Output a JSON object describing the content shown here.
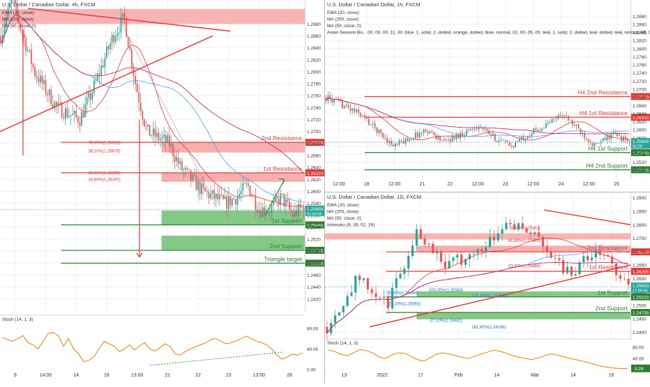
{
  "colors": {
    "up": "#26a69a",
    "down": "#ef5350",
    "grid": "#eef1f5",
    "resistance_fill": "#f59a9a",
    "resistance_line": "#e53935",
    "support_fill": "#66bb6a",
    "support_line": "#2e7d32",
    "ema": "#e53935",
    "ma200": "#c2185b",
    "ma50": "#42a5f5",
    "stoch": "#f57c00",
    "axis_text": "#333333",
    "divider": "#b0b6c2"
  },
  "chart_data": [
    {
      "id": "p4h",
      "type": "candlestick",
      "title": "U.S. Dollar / Canadian Dollar, 4h, FXCM",
      "indicator_labels": [
        "EMA (20, close)",
        "MA (200, close)",
        "MA (50, close, 0)"
      ],
      "ylim": [
        1.24,
        1.292
      ],
      "y_ticks": [
        1.288,
        1.286,
        1.284,
        1.282,
        1.28,
        1.278,
        1.276,
        1.274,
        1.272,
        1.27,
        1.268,
        1.266,
        1.264,
        1.262,
        1.26,
        1.258,
        1.256,
        1.254,
        1.252,
        1.25,
        1.248,
        1.246,
        1.244,
        1.242
      ],
      "x_ticks": [
        "9",
        "14:00",
        "14",
        "16",
        "13:00",
        "21",
        "22",
        "23",
        "13:00",
        "28"
      ],
      "start": 1.286,
      "path": [
        1.286,
        1.292,
        1.286,
        1.28,
        1.277,
        1.274,
        1.273,
        1.272,
        1.276,
        1.281,
        1.286,
        1.289,
        1.278,
        1.27,
        1.269,
        1.268,
        1.264,
        1.262,
        1.26,
        1.259,
        1.258,
        1.259,
        1.261,
        1.257,
        1.257,
        1.259,
        1.256,
        1.2575
      ],
      "levels": [
        {
          "label": "2nd Resistance",
          "price_label": "1.26820",
          "price": 1.2682,
          "kind": "resistance",
          "zone": [
            1.2665,
            1.2682
          ]
        },
        {
          "label": "1st Resistance",
          "price_label": "1.26310",
          "price": 1.2631,
          "kind": "resistance",
          "zone": [
            1.2616,
            1.2631
          ]
        },
        {
          "label": "1st Support",
          "price_label": "1.25440",
          "price": 1.2544,
          "kind": "support",
          "zone": [
            1.2544,
            1.2568
          ]
        },
        {
          "label": "2nd Support",
          "price_label": "1.25015",
          "price": 1.25015,
          "kind": "support",
          "zone": [
            1.2501,
            1.2526
          ]
        },
        {
          "label": "Triangle target",
          "price_label": "1.24800",
          "price": 1.248,
          "kind": "target"
        }
      ],
      "top_zone": [
        1.288,
        1.2905
      ],
      "fib_labels": [
        {
          "text": "78.60%(1.26818)",
          "price": 1.26818
        },
        {
          "text": "38.20%(1.26678)",
          "price": 1.26678
        },
        {
          "text": "50.00%(1.26309)",
          "price": 1.26309
        },
        {
          "text": "23.60%(1.26197)",
          "price": 1.26197
        }
      ],
      "current_price": "1.25693",
      "countdown": "01:56:59",
      "stoch": {
        "label": "Stoch (14, 1, 3)",
        "ticks": [
          "80.00",
          "40.00",
          "0.00"
        ],
        "values": [
          62,
          58,
          55,
          60,
          66,
          52,
          48,
          40,
          55,
          70,
          72,
          65,
          45,
          60,
          40,
          30,
          15,
          18,
          25,
          40,
          55,
          50,
          45,
          35,
          40,
          48,
          38,
          46,
          52,
          40,
          36,
          42,
          50,
          45,
          30,
          28,
          35,
          40,
          44,
          48,
          52,
          58,
          60,
          55,
          50,
          52,
          56,
          60,
          65,
          60,
          55,
          52,
          48,
          40,
          28,
          20,
          24,
          30,
          28,
          32
        ]
      }
    },
    {
      "id": "p1h",
      "type": "candlestick",
      "title": "U.S. Dollar / Canadian Dollar, 1h, FXCM",
      "indicator_labels": [
        "EMA (20, close)",
        "MA (200, close)",
        "MA (50, close, 0)",
        "Asian Session Bo... 00, 00, 00, 11, 30, blue, 1, solid, 2, dotted, orange, dotted, blue, normal, 02, 00, 05, 00, teal, 1, solid, 2, dotted, teal, dotted, teal, normal, 08, 0"
      ],
      "ylim": [
        1.248,
        1.292
      ],
      "y_ticks": [
        1.288,
        1.286,
        1.284,
        1.282,
        1.28,
        1.278,
        1.276,
        1.274,
        1.272,
        1.27,
        1.268,
        1.266,
        1.264,
        1.262,
        1.26,
        1.258,
        1.256,
        1.254,
        1.252,
        1.25
      ],
      "x_ticks": [
        "12:00",
        "18",
        "12:00",
        "21",
        "22",
        "12:00",
        "23",
        "12:00",
        "24",
        "12:00",
        "25"
      ],
      "start": 1.268,
      "path": [
        1.268,
        1.266,
        1.264,
        1.26,
        1.256,
        1.258,
        1.26,
        1.257,
        1.259,
        1.261,
        1.258,
        1.256,
        1.259,
        1.261,
        1.264,
        1.26,
        1.256,
        1.259,
        1.257
      ],
      "levels": [
        {
          "label": "H4 2nd Resistance",
          "price_label": "1.26820",
          "price": 1.2682,
          "kind": "resistance"
        },
        {
          "label": "H4 1st Resistance",
          "price_label": "1.26310",
          "price": 1.2631,
          "kind": "resistance"
        },
        {
          "label": "H4 1st Support",
          "price_label": "1.25440",
          "price": 1.2544,
          "kind": "support"
        },
        {
          "label": "H4 2nd Support",
          "price_label": "1.25015",
          "price": 1.25015,
          "kind": "support"
        }
      ],
      "current_price": "1.25693",
      "countdown": "56:58"
    },
    {
      "id": "p1d",
      "type": "candlestick",
      "title": "U.S. Dollar / Canadian Dollar, 1D, FXCM",
      "indicator_labels": [
        "EMA (20, close)",
        "MA (200, close)",
        "MA (50, close, 0)",
        "Ichimoku (9, 26, 52, 26)"
      ],
      "ylim": [
        1.237,
        1.292
      ],
      "y_ticks": [
        1.29,
        1.285,
        1.28,
        1.275,
        1.27,
        1.265,
        1.26,
        1.255,
        1.25,
        1.245,
        1.24
      ],
      "x_ticks": [
        "13",
        "2022",
        "17",
        "Feb",
        "14",
        "Mar",
        "14",
        "18"
      ],
      "start": 1.242,
      "path": [
        1.242,
        1.26,
        1.25,
        1.278,
        1.265,
        1.27,
        1.282,
        1.275,
        1.262,
        1.27,
        1.258
      ],
      "levels": [
        {
          "label": "2nd Resistance",
          "price_label": "1.26990",
          "price": 1.2699,
          "kind": "resistance",
          "zone": [
            1.2699,
            1.2722
          ]
        },
        {
          "label": "1st Resistance",
          "price_label": "1.26265",
          "price": 1.26265,
          "kind": "resistance"
        },
        {
          "label": "1st Support",
          "price_label": "1.25315",
          "price": 1.25315,
          "kind": "support",
          "zone": [
            1.25315,
            1.2552
          ]
        },
        {
          "label": "2nd Support",
          "price_label": "1.24735",
          "price": 1.24735,
          "kind": "support",
          "zone": [
            1.2448,
            1.24735
          ]
        }
      ],
      "top_zone": [
        1.2745,
        1.2768
      ],
      "fib_labels": [
        {
          "text": "78.60%(1.25468)",
          "price": 1.25468
        },
        {
          "text": "200.00%(1.25563)",
          "price": 1.25563
        },
        {
          "text": "127.20%(1.25354)",
          "price": 1.25354
        },
        {
          "text": "127.20%(1.25065)",
          "price": 1.25065
        },
        {
          "text": "-27.20%(1.24442)",
          "price": 1.24442
        },
        {
          "text": "161.80%(1.24198)",
          "price": 1.24198
        },
        {
          "text": "78.60%(1.27881)",
          "price": 1.27881
        },
        {
          "text": "61.80%(1.27409)",
          "price": 1.27409
        },
        {
          "text": "23.60%(1.26466)",
          "price": 1.26466
        }
      ],
      "current_price": "1.25693",
      "countdown": "17:56:58",
      "stoch": {
        "label": "Stoch (14, 1, 3)",
        "ticks": [
          "80.00",
          "40.00",
          "0.00"
        ],
        "badge": "3.29",
        "values": [
          70,
          65,
          55,
          50,
          60,
          72,
          68,
          60,
          45,
          40,
          52,
          60,
          58,
          48,
          36,
          30,
          42,
          55,
          60,
          56,
          50,
          44,
          40,
          48,
          56,
          62,
          70,
          66,
          58,
          50,
          44,
          40,
          36,
          42,
          50,
          56,
          52,
          46,
          40,
          35,
          30,
          24,
          18,
          12,
          8,
          5,
          4,
          3
        ]
      }
    }
  ]
}
